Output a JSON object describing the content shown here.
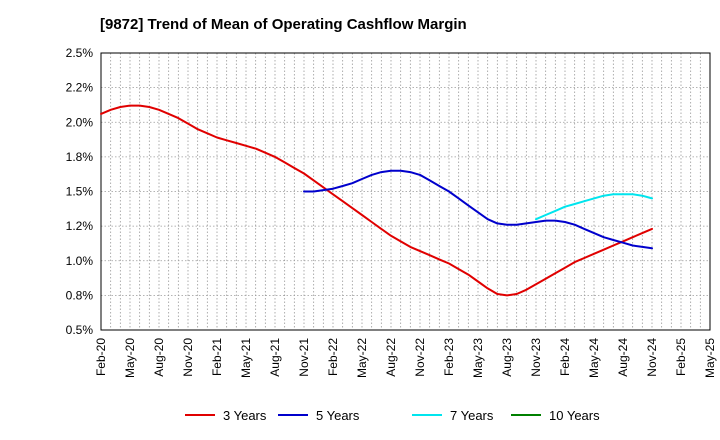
{
  "chart_data": {
    "type": "line",
    "title": "[9872]  Trend of Mean of Operating Cashflow Margin",
    "x_tick_labels": [
      "Feb-20",
      "May-20",
      "Aug-20",
      "Nov-20",
      "Feb-21",
      "May-21",
      "Aug-21",
      "Nov-21",
      "Feb-22",
      "May-22",
      "Aug-22",
      "Nov-22",
      "Feb-23",
      "May-23",
      "Aug-23",
      "Nov-23",
      "Feb-24",
      "May-24",
      "Aug-24",
      "Nov-24",
      "Feb-25",
      "May-25"
    ],
    "y_tick_labels": [
      "0.5%",
      "0.8%",
      "1.0%",
      "1.2%",
      "1.5%",
      "1.8%",
      "2.0%",
      "2.2%",
      "2.5%"
    ],
    "ylim": [
      0.5,
      2.5
    ],
    "grid": true,
    "legend_position": "bottom",
    "series": [
      {
        "name": "3 Years",
        "color": "#e00000",
        "x": [
          "Feb-20",
          "Mar-20",
          "Apr-20",
          "May-20",
          "Jun-20",
          "Jul-20",
          "Aug-20",
          "Sep-20",
          "Oct-20",
          "Nov-20",
          "Dec-20",
          "Jan-21",
          "Feb-21",
          "Mar-21",
          "Apr-21",
          "May-21",
          "Jun-21",
          "Jul-21",
          "Aug-21",
          "Sep-21",
          "Oct-21",
          "Nov-21",
          "Dec-21",
          "Jan-22",
          "Feb-22",
          "Mar-22",
          "Apr-22",
          "May-22",
          "Jun-22",
          "Jul-22",
          "Aug-22",
          "Sep-22",
          "Oct-22",
          "Nov-22",
          "Dec-22",
          "Jan-23",
          "Feb-23",
          "Mar-23",
          "Apr-23",
          "May-23",
          "Jun-23",
          "Jul-23",
          "Aug-23",
          "Sep-23",
          "Oct-23",
          "Nov-23",
          "Dec-23",
          "Jan-24",
          "Feb-24",
          "Mar-24",
          "Apr-24",
          "May-24",
          "Jun-24",
          "Jul-24",
          "Aug-24",
          "Sep-24",
          "Oct-24",
          "Nov-24"
        ],
        "values": [
          2.06,
          2.09,
          2.11,
          2.12,
          2.12,
          2.11,
          2.09,
          2.06,
          2.03,
          1.99,
          1.95,
          1.92,
          1.89,
          1.87,
          1.85,
          1.83,
          1.81,
          1.78,
          1.75,
          1.71,
          1.67,
          1.63,
          1.58,
          1.53,
          1.48,
          1.43,
          1.38,
          1.33,
          1.28,
          1.23,
          1.18,
          1.14,
          1.1,
          1.07,
          1.04,
          1.01,
          0.98,
          0.94,
          0.9,
          0.85,
          0.8,
          0.76,
          0.75,
          0.76,
          0.79,
          0.83,
          0.87,
          0.91,
          0.95,
          0.99,
          1.02,
          1.05,
          1.08,
          1.11,
          1.14,
          1.17,
          1.2,
          1.23
        ]
      },
      {
        "name": "5 Years",
        "color": "#0000cc",
        "x": [
          "Nov-21",
          "Dec-21",
          "Jan-22",
          "Feb-22",
          "Mar-22",
          "Apr-22",
          "May-22",
          "Jun-22",
          "Jul-22",
          "Aug-22",
          "Sep-22",
          "Oct-22",
          "Nov-22",
          "Dec-22",
          "Jan-23",
          "Feb-23",
          "Mar-23",
          "Apr-23",
          "May-23",
          "Jun-23",
          "Jul-23",
          "Aug-23",
          "Sep-23",
          "Oct-23",
          "Nov-23",
          "Dec-23",
          "Jan-24",
          "Feb-24",
          "Mar-24",
          "Apr-24",
          "May-24",
          "Jun-24",
          "Jul-24",
          "Aug-24",
          "Sep-24",
          "Oct-24",
          "Nov-24"
        ],
        "values": [
          1.5,
          1.5,
          1.51,
          1.52,
          1.54,
          1.56,
          1.59,
          1.62,
          1.64,
          1.65,
          1.65,
          1.64,
          1.62,
          1.58,
          1.54,
          1.5,
          1.45,
          1.4,
          1.35,
          1.3,
          1.27,
          1.26,
          1.26,
          1.27,
          1.28,
          1.29,
          1.29,
          1.28,
          1.26,
          1.23,
          1.2,
          1.17,
          1.15,
          1.13,
          1.11,
          1.1,
          1.09
        ]
      },
      {
        "name": "7 Years",
        "color": "#00e5ee",
        "x": [
          "Nov-23",
          "Dec-23",
          "Jan-24",
          "Feb-24",
          "Mar-24",
          "Apr-24",
          "May-24",
          "Jun-24",
          "Jul-24",
          "Aug-24",
          "Sep-24",
          "Oct-24",
          "Nov-24"
        ],
        "values": [
          1.3,
          1.33,
          1.36,
          1.39,
          1.41,
          1.43,
          1.45,
          1.47,
          1.48,
          1.48,
          1.48,
          1.47,
          1.45
        ]
      },
      {
        "name": "10 Years",
        "color": "#008000",
        "x": [],
        "values": []
      }
    ]
  }
}
